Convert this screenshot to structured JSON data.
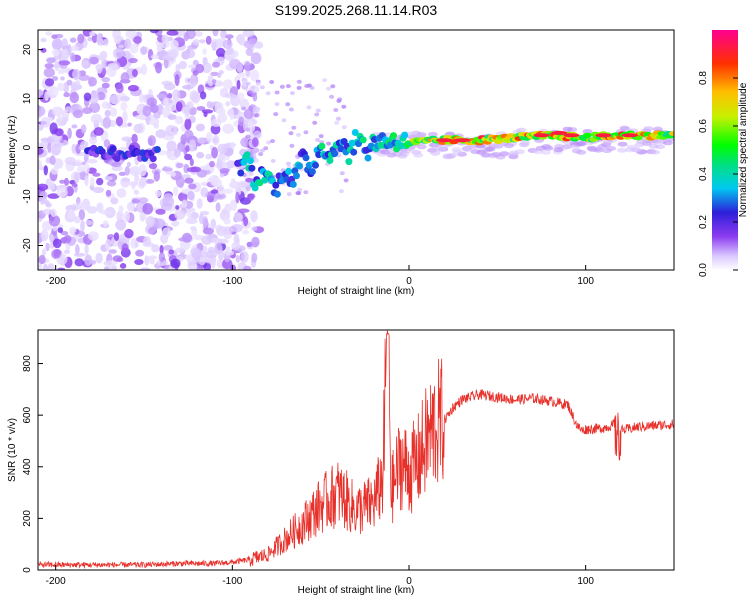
{
  "title": "S199.2025.268.11.14.R03",
  "chart_data": [
    {
      "type": "heatmap",
      "xlabel": "Height of straight line (km)",
      "ylabel": "Frequency (Hz)",
      "xlim": [
        -210,
        150
      ],
      "ylim": [
        -25,
        24
      ],
      "xticks": [
        "-200",
        "-100",
        "0",
        "100"
      ],
      "yticks": [
        "20",
        "10",
        "0",
        "-10",
        "-20"
      ],
      "colorbar": {
        "label": "Normalized spectral amplitude",
        "range": [
          0,
          1
        ],
        "ticks": [
          "0.0",
          "0.2",
          "0.4",
          "0.6",
          "0.8"
        ],
        "colors": [
          "#ffffff",
          "#d9c6ff",
          "#8c3cf0",
          "#2d1fd9",
          "#00c8f0",
          "#00e080",
          "#00ff00",
          "#c8f000",
          "#ffc000",
          "#ff3000",
          "#ff0090"
        ]
      },
      "ridge": [
        {
          "x": -180,
          "y": -1,
          "amp": 0.2
        },
        {
          "x": -160,
          "y": -1,
          "amp": 0.2
        },
        {
          "x": -145,
          "y": -1.5,
          "amp": 0.25
        },
        {
          "x": -95,
          "y": -3,
          "amp": 0.35
        },
        {
          "x": -85,
          "y": -6,
          "amp": 0.4
        },
        {
          "x": -75,
          "y": -7,
          "amp": 0.35
        },
        {
          "x": -60,
          "y": -4,
          "amp": 0.35
        },
        {
          "x": -50,
          "y": -1,
          "amp": 0.4
        },
        {
          "x": -40,
          "y": 0,
          "amp": 0.4
        },
        {
          "x": -30,
          "y": 0.5,
          "amp": 0.4
        },
        {
          "x": -20,
          "y": 1,
          "amp": 0.4
        },
        {
          "x": -10,
          "y": 1.5,
          "amp": 0.45
        },
        {
          "x": 0,
          "y": 1,
          "amp": 0.6
        },
        {
          "x": 20,
          "y": 1.5,
          "amp": 0.75
        },
        {
          "x": 40,
          "y": 1.5,
          "amp": 0.8
        },
        {
          "x": 60,
          "y": 2,
          "amp": 0.75
        },
        {
          "x": 80,
          "y": 2.5,
          "amp": 0.85
        },
        {
          "x": 100,
          "y": 2,
          "amp": 0.7
        },
        {
          "x": 120,
          "y": 2.5,
          "amp": 0.8
        },
        {
          "x": 150,
          "y": 2.5,
          "amp": 0.7
        }
      ]
    },
    {
      "type": "line",
      "xlabel": "Height of straight line (km)",
      "ylabel": "SNR (10 * v/v)",
      "xlim": [
        -210,
        150
      ],
      "ylim": [
        0,
        930
      ],
      "xticks": [
        "-200",
        "-100",
        "0",
        "100"
      ],
      "yticks": [
        "0",
        "200",
        "400",
        "600",
        "800"
      ],
      "color": "#e8302a",
      "series": [
        {
          "name": "SNR",
          "x": [
            -210,
            -190,
            -170,
            -150,
            -130,
            -110,
            -100,
            -90,
            -80,
            -70,
            -60,
            -50,
            -40,
            -30,
            -20,
            -15,
            -12,
            -10,
            -5,
            0,
            5,
            10,
            15,
            20,
            25,
            30,
            40,
            50,
            60,
            70,
            80,
            90,
            95,
            98,
            100,
            110,
            115,
            118,
            120,
            130,
            140,
            150
          ],
          "y": [
            20,
            20,
            20,
            20,
            25,
            25,
            30,
            40,
            60,
            120,
            180,
            250,
            300,
            230,
            260,
            350,
            900,
            300,
            420,
            380,
            420,
            500,
            560,
            580,
            630,
            660,
            680,
            670,
            660,
            665,
            655,
            640,
            560,
            540,
            545,
            550,
            560,
            580,
            540,
            555,
            560,
            565
          ]
        }
      ]
    }
  ]
}
